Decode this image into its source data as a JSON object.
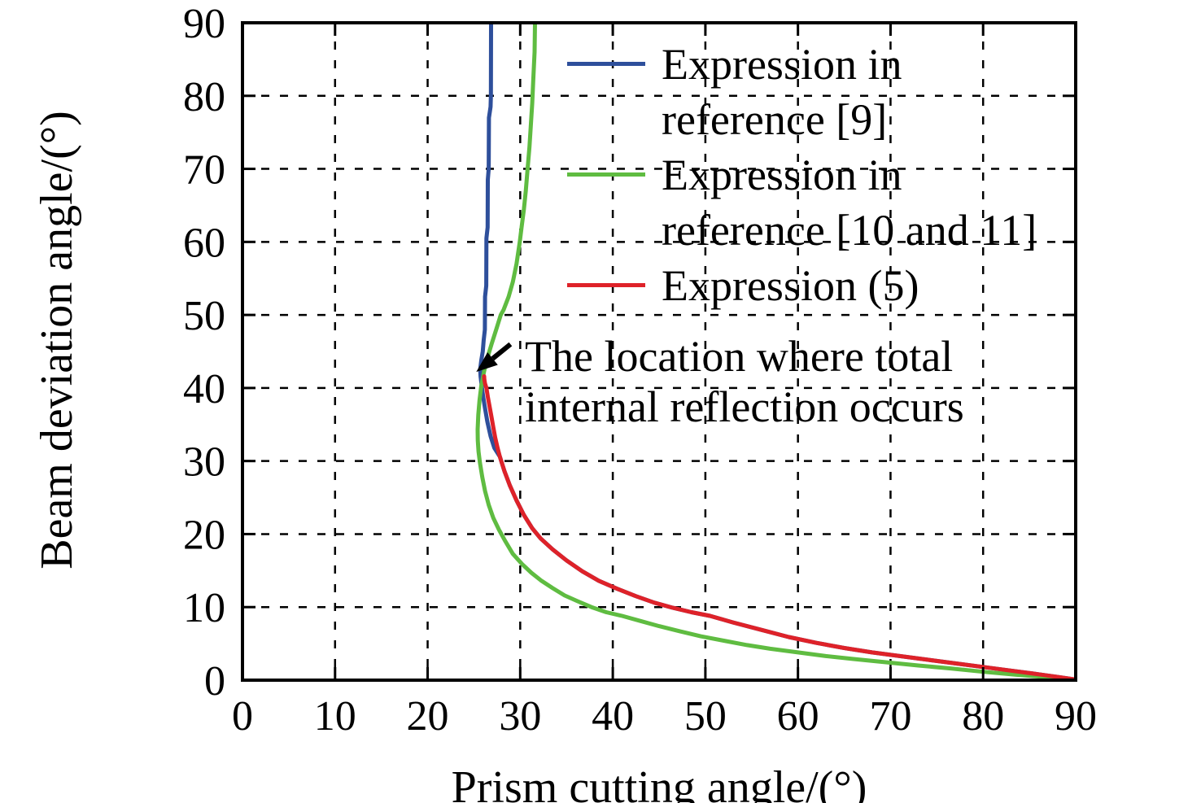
{
  "figure": {
    "background": "#ffffff",
    "text_color": "#000000"
  },
  "chart_data": {
    "type": "line",
    "title": "",
    "xlabel": "Prism cutting angle/(°)",
    "ylabel": "Beam deviation angle/(°)",
    "xlim": [
      0,
      90
    ],
    "ylim": [
      0,
      90
    ],
    "x_ticks": [
      0,
      10,
      20,
      30,
      40,
      50,
      60,
      70,
      80,
      90
    ],
    "y_ticks": [
      0,
      10,
      20,
      30,
      40,
      50,
      60,
      70,
      80,
      90
    ],
    "grid": "dashed-both-axes",
    "legend_position": "top-right-inside-no-box",
    "series": [
      {
        "name": "Expression in reference [9]",
        "color": "#2E4F9B",
        "points": [
          [
            26.85,
            90
          ],
          [
            26.83,
            80
          ],
          [
            26.8,
            78.5
          ],
          [
            26.62,
            77
          ],
          [
            26.6,
            70
          ],
          [
            26.5,
            68.5
          ],
          [
            26.48,
            62
          ],
          [
            26.35,
            60.5
          ],
          [
            26.33,
            54
          ],
          [
            26.2,
            52.5
          ],
          [
            26.18,
            48
          ],
          [
            26.05,
            46.5
          ],
          [
            25.95,
            45
          ],
          [
            25.8,
            43.8
          ],
          [
            25.68,
            42.6
          ],
          [
            25.72,
            41.6
          ],
          [
            25.85,
            40.2
          ],
          [
            26.0,
            38.8
          ],
          [
            26.2,
            37.2
          ],
          [
            26.45,
            35.4
          ],
          [
            26.8,
            33.4
          ],
          [
            27.2,
            31.8
          ],
          [
            27.8,
            30.6
          ],
          [
            28.3,
            28.6
          ],
          [
            28.9,
            26.6
          ],
          [
            29.6,
            24.6
          ],
          [
            30.4,
            22.6
          ],
          [
            31.3,
            20.8
          ],
          [
            32.2,
            19.4
          ],
          [
            33.5,
            17.9
          ],
          [
            35.0,
            16.4
          ],
          [
            36.7,
            14.9
          ],
          [
            38.5,
            13.6
          ],
          [
            40.5,
            12.5
          ],
          [
            42.5,
            11.5
          ],
          [
            44.5,
            10.6
          ],
          [
            46.5,
            9.9
          ],
          [
            48.5,
            9.3
          ],
          [
            50.5,
            8.8
          ],
          [
            53.0,
            7.9
          ],
          [
            56.0,
            6.9
          ],
          [
            59.0,
            5.9
          ],
          [
            62.0,
            5.1
          ],
          [
            65.0,
            4.4
          ],
          [
            68.0,
            3.8
          ],
          [
            71.0,
            3.3
          ],
          [
            74.0,
            2.8
          ],
          [
            77.0,
            2.3
          ],
          [
            80.0,
            1.8
          ],
          [
            83.0,
            1.3
          ],
          [
            86.0,
            0.8
          ],
          [
            88.0,
            0.45
          ],
          [
            90.0,
            0.08
          ]
        ]
      },
      {
        "name": "Expression in reference [10 and 11]",
        "color": "#5FBC41",
        "points": [
          [
            31.6,
            90
          ],
          [
            31.55,
            86
          ],
          [
            31.4,
            82
          ],
          [
            31.3,
            79
          ],
          [
            31.15,
            76
          ],
          [
            31.0,
            73
          ],
          [
            30.8,
            70
          ],
          [
            30.6,
            67
          ],
          [
            30.4,
            64.5
          ],
          [
            30.15,
            62
          ],
          [
            29.95,
            60
          ],
          [
            29.6,
            57
          ],
          [
            29.2,
            54.5
          ],
          [
            28.75,
            52.5
          ],
          [
            28.2,
            50.7
          ],
          [
            27.9,
            50
          ],
          [
            27.4,
            48
          ],
          [
            26.9,
            46
          ],
          [
            26.5,
            44.3
          ],
          [
            26.1,
            42.3
          ],
          [
            25.8,
            40.3
          ],
          [
            25.6,
            38.3
          ],
          [
            25.47,
            36.3
          ],
          [
            25.4,
            34.3
          ],
          [
            25.42,
            32.8
          ],
          [
            25.5,
            31.3
          ],
          [
            25.65,
            29.8
          ],
          [
            25.9,
            27.8
          ],
          [
            26.2,
            25.9
          ],
          [
            26.6,
            24.0
          ],
          [
            27.1,
            22.2
          ],
          [
            27.7,
            20.6
          ],
          [
            28.4,
            19.0
          ],
          [
            29.2,
            17.3
          ],
          [
            30.2,
            15.9
          ],
          [
            31.2,
            14.7
          ],
          [
            32.3,
            13.6
          ],
          [
            33.5,
            12.6
          ],
          [
            34.8,
            11.6
          ],
          [
            36.2,
            10.8
          ],
          [
            37.7,
            10.0
          ],
          [
            39.3,
            9.3
          ],
          [
            41.0,
            8.8
          ],
          [
            43.0,
            8.1
          ],
          [
            45.0,
            7.4
          ],
          [
            47.2,
            6.7
          ],
          [
            49.5,
            6.0
          ],
          [
            52.0,
            5.4
          ],
          [
            54.5,
            4.8
          ],
          [
            57.0,
            4.3
          ],
          [
            60.0,
            3.8
          ],
          [
            63.0,
            3.3
          ],
          [
            66.0,
            2.9
          ],
          [
            69.5,
            2.45
          ],
          [
            73.0,
            2.0
          ],
          [
            76.5,
            1.6
          ],
          [
            80.0,
            1.15
          ],
          [
            83.5,
            0.75
          ],
          [
            87.0,
            0.4
          ],
          [
            90.0,
            0.08
          ]
        ]
      },
      {
        "name": "Expression (5)",
        "color": "#DE2229",
        "points": [
          [
            26.1,
            41.6
          ],
          [
            26.12,
            41.2
          ],
          [
            26.2,
            40.6
          ],
          [
            26.35,
            40.0
          ],
          [
            26.5,
            38.8
          ],
          [
            26.7,
            37.4
          ],
          [
            26.9,
            36.0
          ],
          [
            27.1,
            34.6
          ],
          [
            27.3,
            33.2
          ],
          [
            27.55,
            31.8
          ],
          [
            27.8,
            30.6
          ],
          [
            28.3,
            28.6
          ],
          [
            28.9,
            26.6
          ],
          [
            29.6,
            24.6
          ],
          [
            30.4,
            22.6
          ],
          [
            31.3,
            20.8
          ],
          [
            32.2,
            19.4
          ],
          [
            33.5,
            17.9
          ],
          [
            35.0,
            16.4
          ],
          [
            36.7,
            14.9
          ],
          [
            38.5,
            13.6
          ],
          [
            40.5,
            12.5
          ],
          [
            42.5,
            11.5
          ],
          [
            44.5,
            10.6
          ],
          [
            46.5,
            9.9
          ],
          [
            48.5,
            9.3
          ],
          [
            50.5,
            8.8
          ],
          [
            53.0,
            7.9
          ],
          [
            56.0,
            6.9
          ],
          [
            59.0,
            5.9
          ],
          [
            62.0,
            5.1
          ],
          [
            65.0,
            4.4
          ],
          [
            68.0,
            3.8
          ],
          [
            71.0,
            3.3
          ],
          [
            74.0,
            2.8
          ],
          [
            77.0,
            2.3
          ],
          [
            80.0,
            1.8
          ],
          [
            83.0,
            1.3
          ],
          [
            86.0,
            0.8
          ],
          [
            88.0,
            0.45
          ],
          [
            90.0,
            0.08
          ]
        ]
      }
    ],
    "annotation": {
      "text": "The location where total internal reflection occurs",
      "arrow_tail_xy": [
        28.95,
        46.0
      ],
      "arrow_tip_xy": [
        25.25,
        42.2
      ]
    }
  },
  "axis": {
    "xlabel": "Prism cutting angle/(°)",
    "ylabel": "Beam deviation angle/(°)",
    "line_color": "#000000",
    "grid_color": "#000000"
  },
  "legend": {
    "entries": [
      {
        "color": "#2E4F9B",
        "line1": "Expression in",
        "line2": "reference [9]"
      },
      {
        "color": "#5FBC41",
        "line1": "Expression in",
        "line2": "reference [10 and 11]"
      },
      {
        "color": "#DE2229",
        "line1": "Expression (5)",
        "line2": ""
      }
    ]
  },
  "annotation": {
    "line1": "The location where total",
    "line2": "internal reflection occurs"
  }
}
